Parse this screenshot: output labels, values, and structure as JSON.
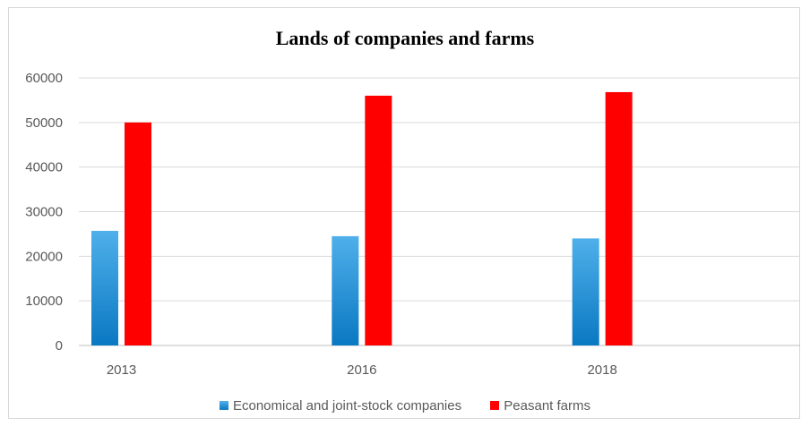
{
  "chart_data": {
    "type": "bar",
    "title": "Lands of companies and farms",
    "categories": [
      "2013",
      "2016",
      "2018"
    ],
    "series": [
      {
        "name": "Economical and joint-stock companies",
        "values": [
          25700,
          24500,
          24000
        ],
        "color": "#1f8fd6"
      },
      {
        "name": "Peasant farms",
        "values": [
          50000,
          56000,
          56800
        ],
        "color": "#ff0000"
      }
    ],
    "ylim": [
      0,
      60000
    ],
    "yticks": [
      "0",
      "10000",
      "20000",
      "30000",
      "40000",
      "50000",
      "60000"
    ],
    "grid": true,
    "legend": "bottom"
  }
}
